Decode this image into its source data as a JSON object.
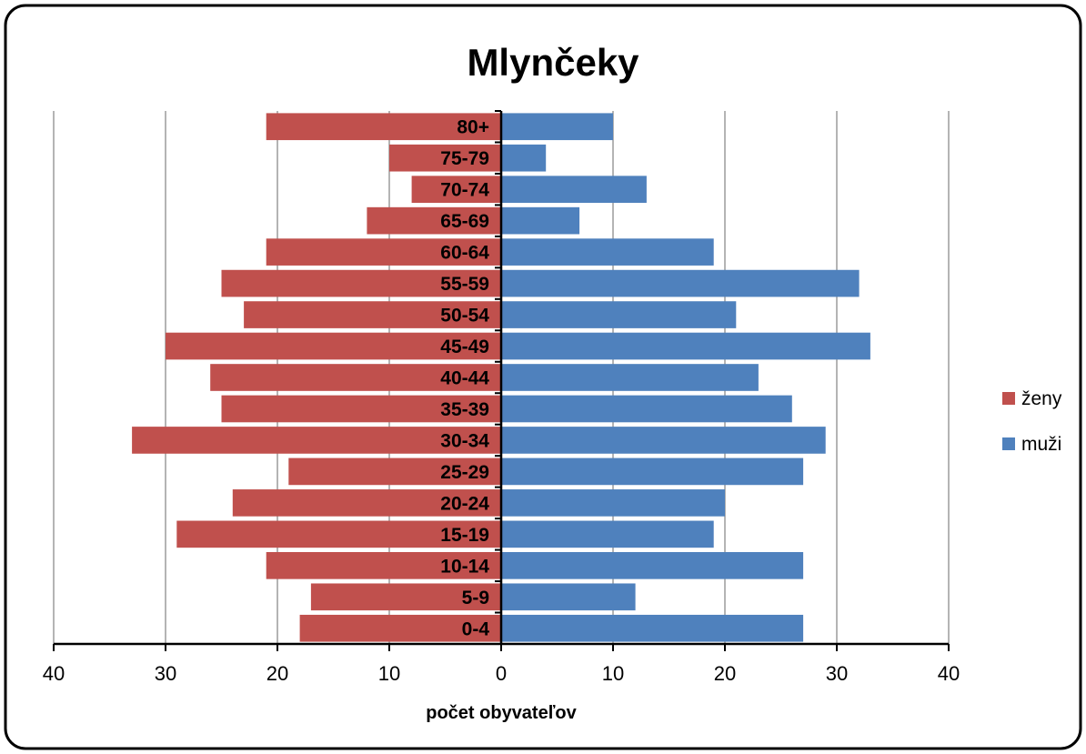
{
  "chart_data": {
    "type": "bar",
    "orientation": "horizontal",
    "layout": "population-pyramid",
    "title": "Mlynčeky",
    "xlabel": "počet obyvateľov",
    "ylabel": "",
    "xlim": [
      -40,
      40
    ],
    "xticks": [
      -40,
      -30,
      -20,
      -10,
      0,
      10,
      20,
      30,
      40
    ],
    "xtick_labels": [
      "40",
      "30",
      "20",
      "10",
      "0",
      "10",
      "20",
      "30",
      "40"
    ],
    "grid": "vertical",
    "legend_position": "right",
    "categories": [
      "0-4",
      "5-9",
      "10-14",
      "15-19",
      "20-24",
      "25-29",
      "30-34",
      "35-39",
      "40-44",
      "45-49",
      "50-54",
      "55-59",
      "60-64",
      "65-69",
      "70-74",
      "75-79",
      "80+"
    ],
    "series": [
      {
        "name": "ženy",
        "color": "#c0504d",
        "side": "left",
        "values": [
          18,
          17,
          21,
          29,
          24,
          19,
          33,
          25,
          26,
          30,
          23,
          25,
          21,
          12,
          8,
          10,
          21
        ]
      },
      {
        "name": "muži",
        "color": "#4f81bd",
        "side": "right",
        "values": [
          27,
          12,
          27,
          19,
          20,
          27,
          29,
          26,
          23,
          33,
          21,
          32,
          19,
          7,
          13,
          4,
          10
        ]
      }
    ]
  }
}
